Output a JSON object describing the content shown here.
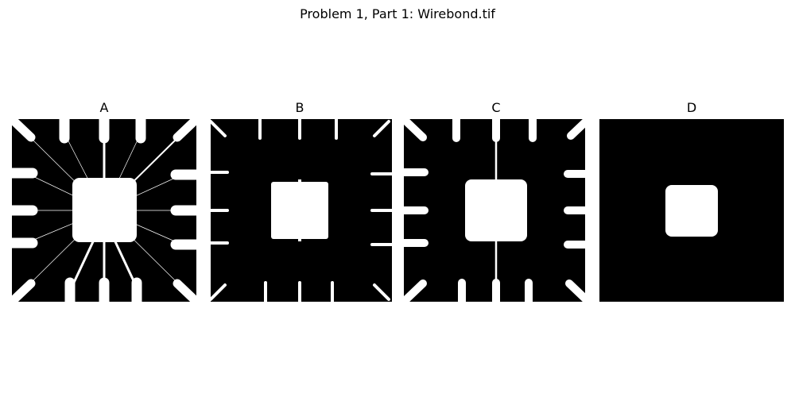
{
  "figure": {
    "suptitle": "Problem 1, Part 1: Wirebond.tif",
    "panels": [
      {
        "id": "A",
        "title": "A"
      },
      {
        "id": "B",
        "title": "B"
      },
      {
        "id": "C",
        "title": "C"
      },
      {
        "id": "D",
        "title": "D"
      }
    ]
  },
  "colors": {
    "background": "#000000",
    "foreground": "#ffffff"
  }
}
